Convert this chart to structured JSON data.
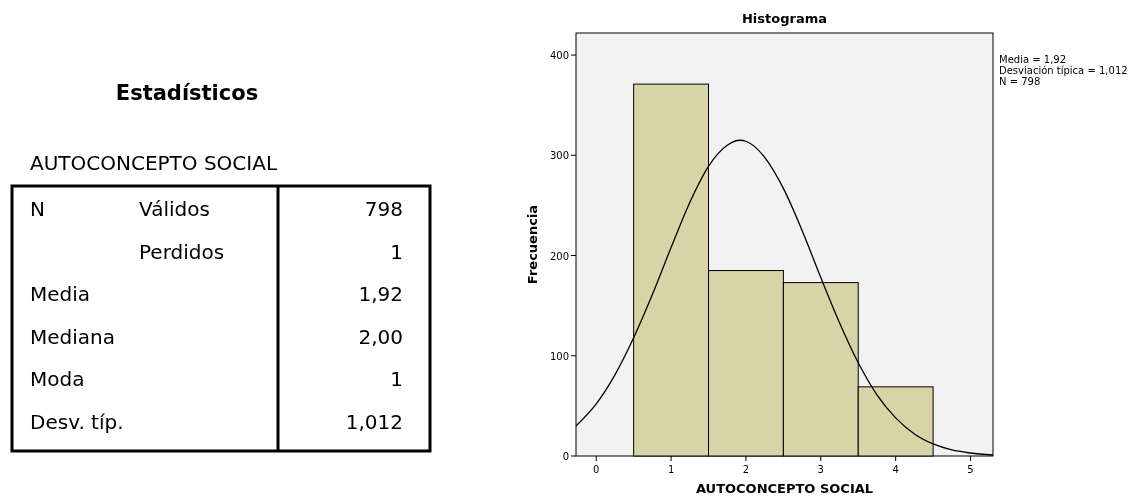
{
  "chart_data": [
    {
      "type": "other",
      "title": "Estadísticos",
      "subtitle": "AUTOCONCEPTO SOCIAL",
      "y_categories": [
        "N",
        null,
        "Media",
        "Mediana",
        "Moda",
        "Desv. típ."
      ],
      "y2_categories": [
        "Válidos",
        "Perdidos",
        null,
        null,
        null,
        null
      ],
      "cell_labels": [
        [
          "798"
        ],
        [
          "1"
        ],
        [
          "1,92"
        ],
        [
          "2,00"
        ],
        [
          "1"
        ],
        [
          "1,012"
        ]
      ]
    },
    {
      "type": "histogram",
      "title": "Histograma",
      "xlabel": "AUTOCONCEPTO SOCIAL",
      "ylabel": "Frecuencia",
      "bins": [
        0.5,
        1.5,
        2.5,
        3.5,
        4.5
      ],
      "values": [
        371,
        185,
        173,
        69
      ],
      "color": "#d9d4a8",
      "series": [
        {
          "type": "line",
          "color": "#000000",
          "x": [
            -0.27,
            0,
            0.25,
            0.5,
            0.75,
            1,
            1.25,
            1.5,
            1.75,
            1.92,
            2,
            2.25,
            2.5,
            2.75,
            3,
            3.25,
            3.5,
            3.75,
            4,
            4.25,
            4.5,
            4.75,
            5,
            5.3
          ],
          "values": [
            30,
            52,
            81,
            118,
            161,
            208,
            253,
            289,
            310,
            315,
            314,
            298,
            267,
            225,
            178,
            133,
            93,
            61,
            38,
            22,
            12,
            6,
            3,
            1
          ]
        }
      ],
      "xlim": [
        -0.27,
        5.3
      ],
      "ylim": [
        0,
        422
      ],
      "xticks": [
        0,
        1,
        2,
        3,
        4,
        5
      ],
      "yticks": [
        0,
        100,
        200,
        300,
        400
      ],
      "annotations": [
        "Media = 1,92",
        "Desviación típica = 1,012",
        "N = 798"
      ]
    }
  ]
}
